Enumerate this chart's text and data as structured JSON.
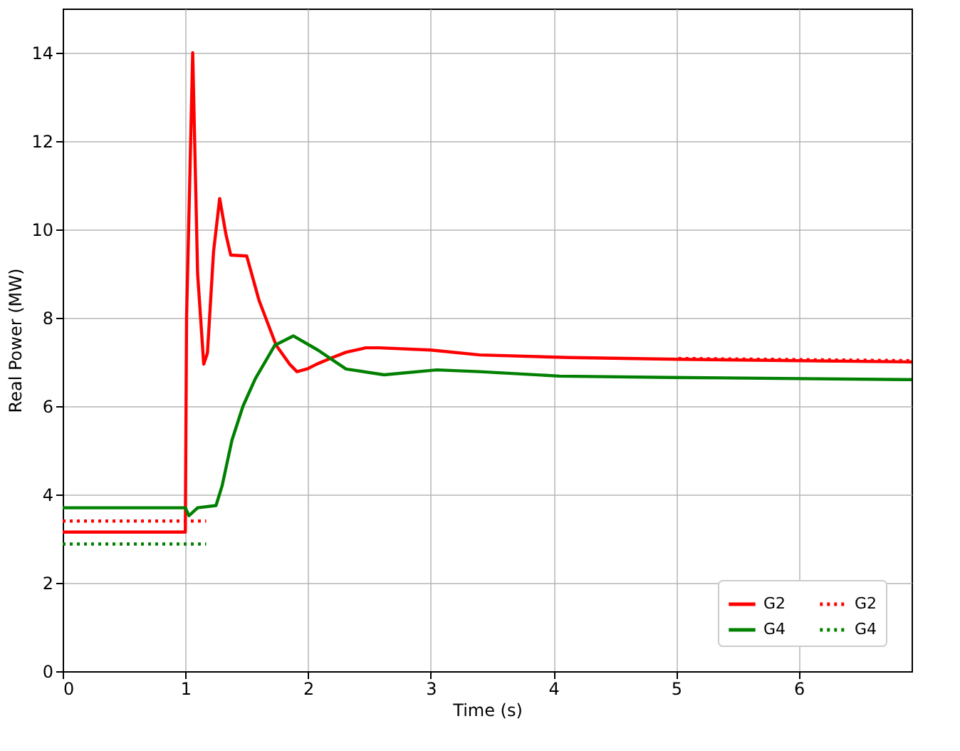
{
  "chart_data": {
    "type": "line",
    "xlabel": "Time (s)",
    "ylabel": "Real Power (MW)",
    "xlim": [
      0,
      6.92
    ],
    "ylim": [
      0,
      15
    ],
    "xticks": [
      0,
      1,
      2,
      3,
      4,
      5,
      6
    ],
    "yticks": [
      0,
      2,
      4,
      6,
      8,
      10,
      12,
      14
    ],
    "grid": true,
    "legend": "bottom right",
    "series": [
      {
        "name": "G2",
        "color": "#ff0000",
        "line_style": "solid",
        "x": [
          0,
          1.0,
          1.01,
          1.06,
          1.1,
          1.15,
          1.18,
          1.23,
          1.28,
          1.33,
          1.37,
          1.5,
          1.6,
          1.74,
          1.85,
          1.91,
          2.0,
          2.07,
          2.2,
          2.31,
          2.47,
          2.58,
          3.0,
          3.4,
          4.13,
          5.02,
          6.92
        ],
        "values": [
          3.15,
          3.15,
          8,
          14,
          9,
          6.95,
          7.2,
          9.5,
          10.7,
          9.9,
          9.42,
          9.4,
          8.4,
          7.38,
          6.95,
          6.78,
          6.85,
          6.95,
          7.1,
          7.22,
          7.32,
          7.32,
          7.27,
          7.16,
          7.1,
          7.06,
          7.0
        ]
      },
      {
        "name": "G4",
        "color": "#008000",
        "line_style": "solid",
        "x": [
          0,
          1.0,
          1.03,
          1.1,
          1.25,
          1.3,
          1.38,
          1.47,
          1.57,
          1.73,
          1.88,
          2.08,
          2.31,
          2.62,
          3.05,
          3.4,
          4.05,
          4.95,
          6.92
        ],
        "values": [
          3.7,
          3.7,
          3.52,
          3.7,
          3.75,
          4.2,
          5.23,
          6.0,
          6.62,
          7.38,
          7.59,
          7.27,
          6.84,
          6.71,
          6.82,
          6.78,
          6.68,
          6.65,
          6.6
        ]
      },
      {
        "name": "G2",
        "color": "#ff0000",
        "line_style": "dotted",
        "x": [
          0,
          1.17,
          3,
          5.02,
          6.92
        ],
        "values": [
          3.4,
          3.4,
          null,
          7.08,
          7.03
        ]
      },
      {
        "name": "G4",
        "color": "#008000",
        "line_style": "dotted",
        "x": [
          0,
          1.17
        ],
        "values": [
          2.88,
          2.88
        ]
      }
    ]
  }
}
